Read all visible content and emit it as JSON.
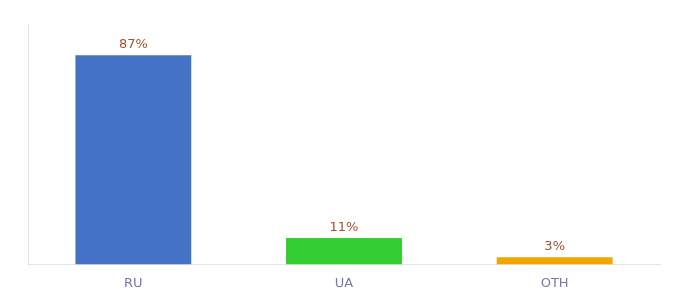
{
  "chart_data": {
    "type": "bar",
    "categories": [
      "RU",
      "UA",
      "OTH"
    ],
    "values": [
      87,
      11,
      3
    ],
    "value_labels": [
      "87%",
      "11%",
      "3%"
    ],
    "colors": [
      "#4472c4",
      "#33cc33",
      "#f0a500"
    ],
    "ylim": [
      0,
      100
    ],
    "grid": false,
    "data_labels": true,
    "tick_labels": "x"
  }
}
